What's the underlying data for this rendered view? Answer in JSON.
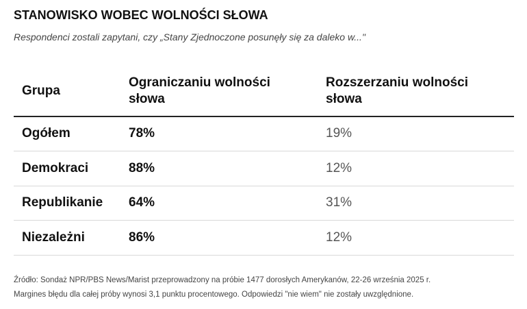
{
  "header": {
    "title": "STANOWISKO WOBEC WOLNOŚCI SŁOWA",
    "subtitle": "Respondenci zostali zapytani, czy „Stany Zjednoczone posunęły się za daleko w...\""
  },
  "table": {
    "columns": [
      "Grupa",
      "Ograniczaniu wolności słowa",
      "Rozszerzaniu wolności słowa"
    ],
    "rows": [
      [
        "Ogółem",
        "78%",
        "19%"
      ],
      [
        "Demokraci",
        "88%",
        "12%"
      ],
      [
        "Republikanie",
        "64%",
        "31%"
      ],
      [
        "Niezależni",
        "86%",
        "12%"
      ]
    ]
  },
  "footer": {
    "lines": [
      "Źródło: Sondaż NPR/PBS News/Marist przeprowadzony na próbie 1477 dorosłych Amerykanów, 22-26 września 2025 r.",
      "Margines błędu dla całej próby wynosi 3,1 punktu procentowego. Odpowiedzi \"nie wiem\" nie zostały uwzględnione."
    ]
  }
}
